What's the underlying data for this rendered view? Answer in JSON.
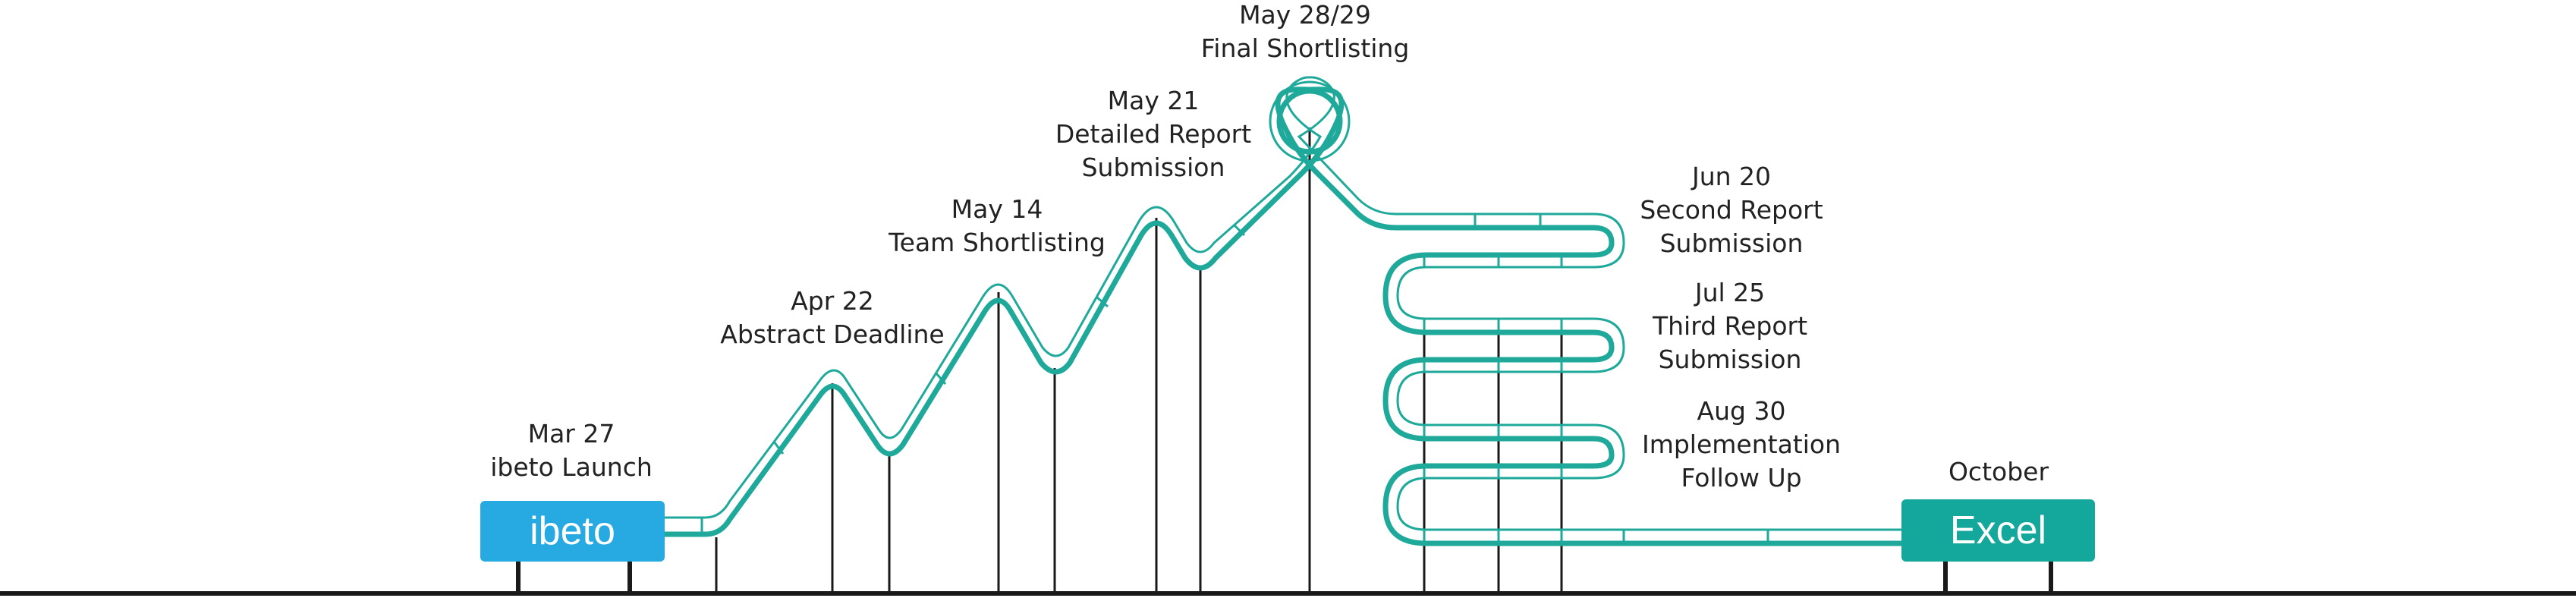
{
  "colors": {
    "track": "#1fa99a",
    "support": "#1a1a1a",
    "start_box": "#27a9e1",
    "end_box": "#14a79b",
    "text": "#222222"
  },
  "start_box": {
    "label": "ibeto"
  },
  "end_box": {
    "label": "Excel"
  },
  "milestones": [
    {
      "date": "Mar 27",
      "lines": [
        "ibeto Launch"
      ]
    },
    {
      "date": "Apr 22",
      "lines": [
        "Abstract Deadline"
      ]
    },
    {
      "date": "May 14",
      "lines": [
        "Team Shortlisting"
      ]
    },
    {
      "date": "May 21",
      "lines": [
        "Detailed Report",
        "Submission"
      ]
    },
    {
      "date": "May 28/29",
      "lines": [
        "Final Shortlisting"
      ]
    },
    {
      "date": "Jun 20",
      "lines": [
        "Second Report",
        "Submission"
      ]
    },
    {
      "date": "Jul 25",
      "lines": [
        "Third Report",
        "Submission"
      ]
    },
    {
      "date": "Aug 30",
      "lines": [
        "Implementation",
        "Follow Up"
      ]
    },
    {
      "date": "October",
      "lines": []
    }
  ]
}
